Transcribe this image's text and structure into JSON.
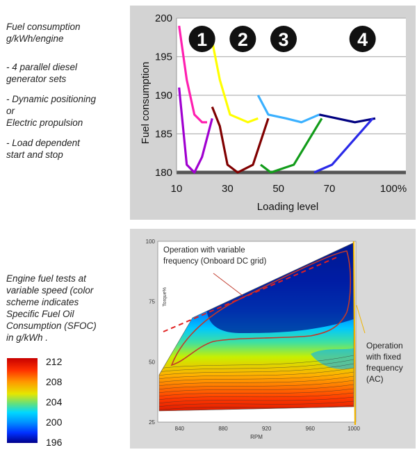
{
  "notes": {
    "fuel_title": "Fuel consumption\ng/kWh/engine",
    "bullets": [
      "- 4 parallel diesel\n  generator sets",
      "- Dynamic positioning\n  or\n  Electric propulsion",
      "- Load dependent\n  start and stop"
    ],
    "engine_tests": "Engine fuel tests at\nvariable speed (color\nscheme indicates\nSpecific Fuel Oil\nConsumption (SFOC)\nin g/kWh ."
  },
  "colorbar": {
    "labels": [
      "212",
      "208",
      "204",
      "200",
      "196"
    ]
  },
  "chart_data": [
    {
      "type": "line",
      "xlabel": "Loading level",
      "ylabel": "Fuel consumption",
      "ylim": [
        180,
        200
      ],
      "yticks": [
        180,
        185,
        190,
        195,
        200
      ],
      "xtick_labels": [
        "10",
        "30",
        "50",
        "70",
        "100%"
      ],
      "grid": true,
      "regime_labels": [
        "1",
        "2",
        "3",
        "4"
      ],
      "series": [
        {
          "color": "#ff1fb0",
          "points": [
            [
              11,
              199
            ],
            [
              14,
              192
            ],
            [
              17,
              187.5
            ],
            [
              20,
              186.5
            ],
            [
              22,
              186.5
            ]
          ]
        },
        {
          "color": "#a000d0",
          "points": [
            [
              11,
              191
            ],
            [
              14,
              181
            ],
            [
              17,
              180
            ],
            [
              20,
              182
            ],
            [
              24,
              187
            ]
          ]
        },
        {
          "color": "#ffff00",
          "points": [
            [
              24,
              197
            ],
            [
              27,
              192
            ],
            [
              31,
              187.5
            ],
            [
              38,
              186.5
            ],
            [
              42,
              187
            ]
          ]
        },
        {
          "color": "#800000",
          "points": [
            [
              24,
              188.5
            ],
            [
              27,
              186
            ],
            [
              30,
              181
            ],
            [
              34,
              180
            ],
            [
              40,
              181
            ],
            [
              46,
              187
            ]
          ]
        },
        {
          "color": "#3ab0ff",
          "points": [
            [
              42,
              190
            ],
            [
              46,
              187.5
            ],
            [
              53,
              187
            ],
            [
              59,
              186.5
            ],
            [
              66,
              187.5
            ]
          ]
        },
        {
          "color": "#129c1a",
          "points": [
            [
              43,
              181
            ],
            [
              47,
              180
            ],
            [
              56,
              181
            ],
            [
              67,
              187
            ]
          ]
        },
        {
          "color": "#000080",
          "points": [
            [
              66,
              187.5
            ],
            [
              73,
              187
            ],
            [
              80,
              186.5
            ],
            [
              88,
              187
            ]
          ]
        },
        {
          "color": "#2a2ae8",
          "points": [
            [
              64,
              180
            ],
            [
              71,
              181
            ],
            [
              79,
              184
            ],
            [
              87,
              187
            ]
          ]
        }
      ]
    },
    {
      "type": "heatmap",
      "xlabel": "RPM",
      "ylabel": "Torque%",
      "xlim": [
        820,
        1000
      ],
      "ylim": [
        25,
        100
      ],
      "xtick_labels": [
        "840",
        "880",
        "920",
        "960",
        "1000"
      ],
      "ytick_labels": [
        "25",
        "50",
        "75",
        "100"
      ],
      "colorbar_range": [
        196,
        212
      ],
      "annotations": [
        "Operation with variable\nfrequency (Onboard DC grid)",
        "Operation\nwith fixed\nfrequency\n(AC)"
      ]
    }
  ]
}
